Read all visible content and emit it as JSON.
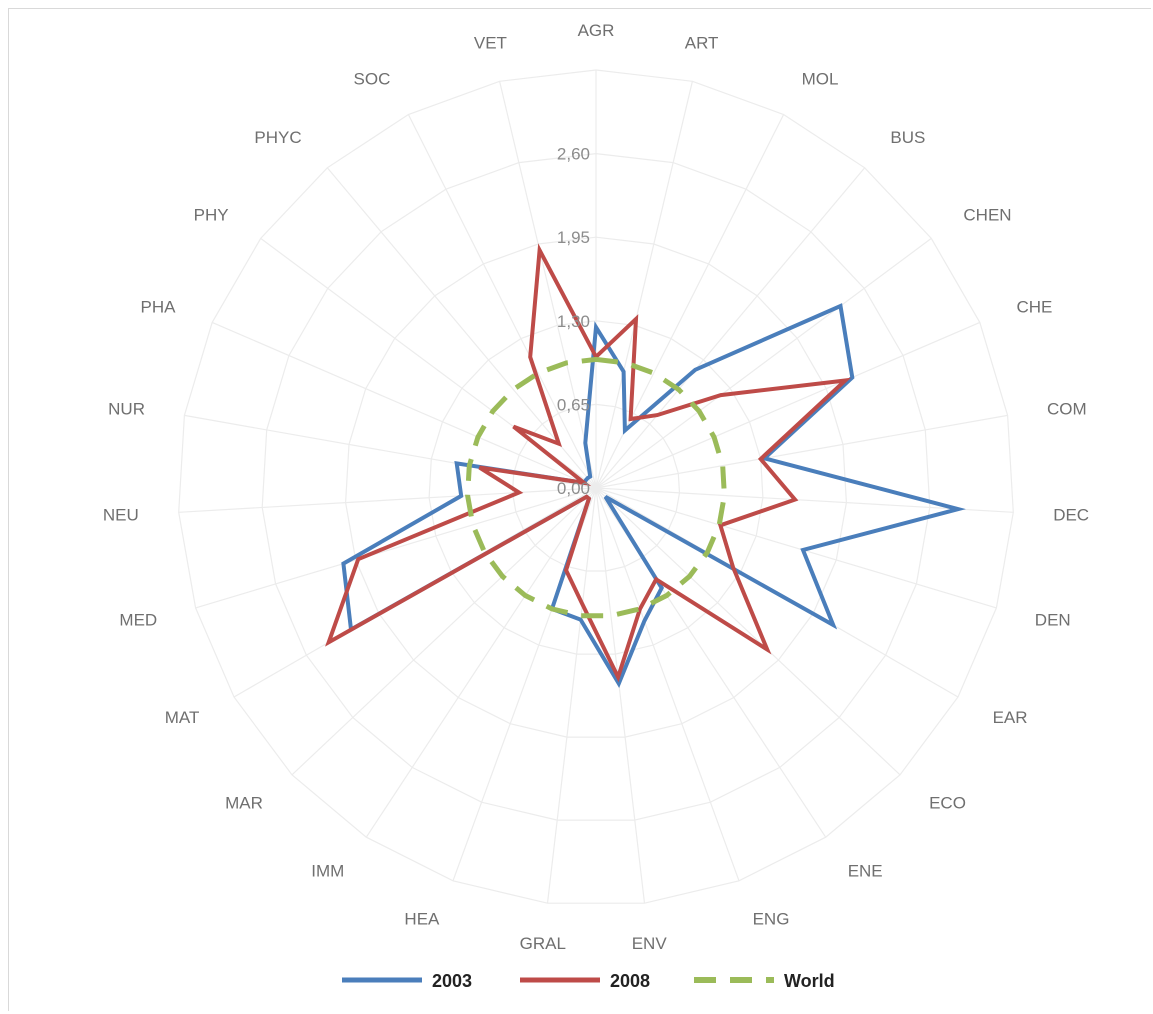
{
  "chart_data": {
    "type": "radar",
    "categories": [
      "AGR",
      "ART",
      "MOL",
      "BUS",
      "CHEN",
      "CHE",
      "COM",
      "DEC",
      "DEN",
      "EAR",
      "ECO",
      "ENE",
      "ENG",
      "ENV",
      "GRAL",
      "HEA",
      "IMM",
      "MAR",
      "MAT",
      "MED",
      "NEU",
      "NUR",
      "PHA",
      "PHY",
      "PHYC",
      "SOC",
      "VET"
    ],
    "tick_labels": [
      "0,00",
      "0,65",
      "1,30",
      "1,95",
      "2,60"
    ],
    "rlim": [
      0,
      3.25
    ],
    "grid": true,
    "legend_position": "bottom",
    "series": [
      {
        "name": "2003",
        "color": "#4a7ebb",
        "dash": false,
        "values": [
          1.25,
          0.93,
          0.5,
          1.2,
          2.37,
          2.17,
          1.33,
          2.82,
          1.68,
          2.13,
          0.1,
          0.93,
          1.1,
          1.53,
          1.03,
          1.0,
          0.1,
          0.1,
          2.2,
          2.05,
          1.05,
          1.1,
          0.1,
          0.1,
          0.1,
          0.1,
          0.36
        ]
      },
      {
        "name": "2008",
        "color": "#be4b48",
        "dash": false,
        "values": [
          1.02,
          1.35,
          0.6,
          0.74,
          1.21,
          2.11,
          1.3,
          1.55,
          1.01,
          1.23,
          1.83,
          0.85,
          1.0,
          1.48,
          0.91,
          0.68,
          0.1,
          0.1,
          2.4,
          1.93,
          0.6,
          0.92,
          0.1,
          0.8,
          0.45,
          1.14,
          1.9
        ]
      },
      {
        "name": "World",
        "color": "#9bbb59",
        "dash": true,
        "values": [
          1.0,
          1.0,
          1.0,
          1.0,
          1.0,
          1.0,
          1.0,
          1.0,
          1.0,
          1.0,
          1.0,
          1.0,
          1.0,
          1.0,
          1.0,
          1.0,
          1.0,
          1.0,
          1.0,
          1.0,
          1.0,
          1.0,
          1.0,
          1.0,
          1.0,
          1.0,
          1.0
        ]
      }
    ]
  }
}
